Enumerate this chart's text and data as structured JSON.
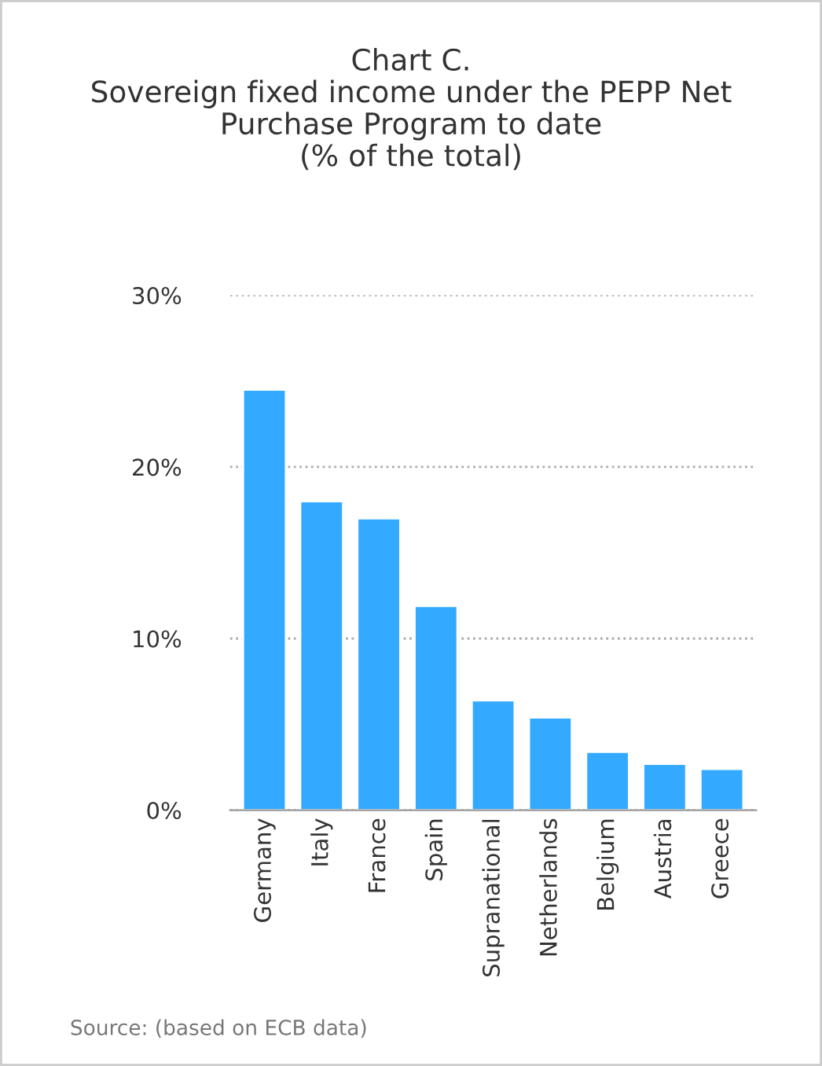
{
  "chart_data": {
    "type": "bar",
    "title": "Chart C.\nSovereign fixed income under the PEPP Net\nPurchase Program to date\n(% of the total)",
    "categories": [
      "Germany",
      "Italy",
      "France",
      "Spain",
      "Supranational",
      "Netherlands",
      "Belgium",
      "Austria",
      "Greece"
    ],
    "values": [
      24.5,
      18.0,
      17.0,
      11.9,
      6.4,
      5.4,
      3.4,
      2.7,
      2.4
    ],
    "color": "#33aaff",
    "ylim": [
      0,
      30
    ],
    "yticks": [
      {
        "value": 0,
        "label": "0%"
      },
      {
        "value": 10,
        "label": "10%"
      },
      {
        "value": 20,
        "label": "20%"
      },
      {
        "value": 30,
        "label": "30%"
      }
    ],
    "grid": "y",
    "annotations": [
      "Source: (based on ECB data)"
    ]
  }
}
